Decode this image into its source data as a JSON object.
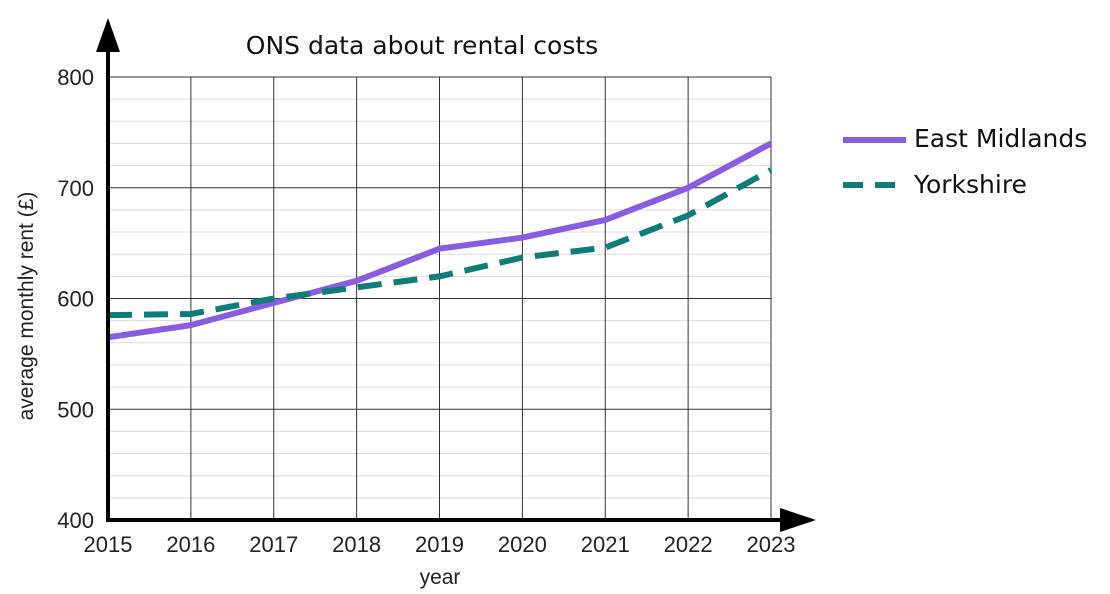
{
  "chart_data": {
    "type": "line",
    "title": "ONS data about rental costs",
    "xlabel": "year",
    "ylabel": "average monthly rent (£)",
    "x": [
      "2015",
      "2016",
      "2017",
      "2018",
      "2019",
      "2020",
      "2021",
      "2022",
      "2023"
    ],
    "y_ticks": [
      "400",
      "500",
      "600",
      "700",
      "800"
    ],
    "ylim": [
      400,
      800
    ],
    "grid": true,
    "legend_position": "right",
    "series": [
      {
        "name": "East Midlands",
        "color": "#8A5CE0",
        "style": "solid",
        "values": [
          565,
          576,
          596,
          616,
          645,
          655,
          671,
          700,
          740
        ]
      },
      {
        "name": "Yorkshire",
        "color": "#107C78",
        "style": "dashed",
        "values": [
          585,
          586,
          600,
          610,
          620,
          637,
          646,
          675,
          716
        ]
      }
    ]
  }
}
